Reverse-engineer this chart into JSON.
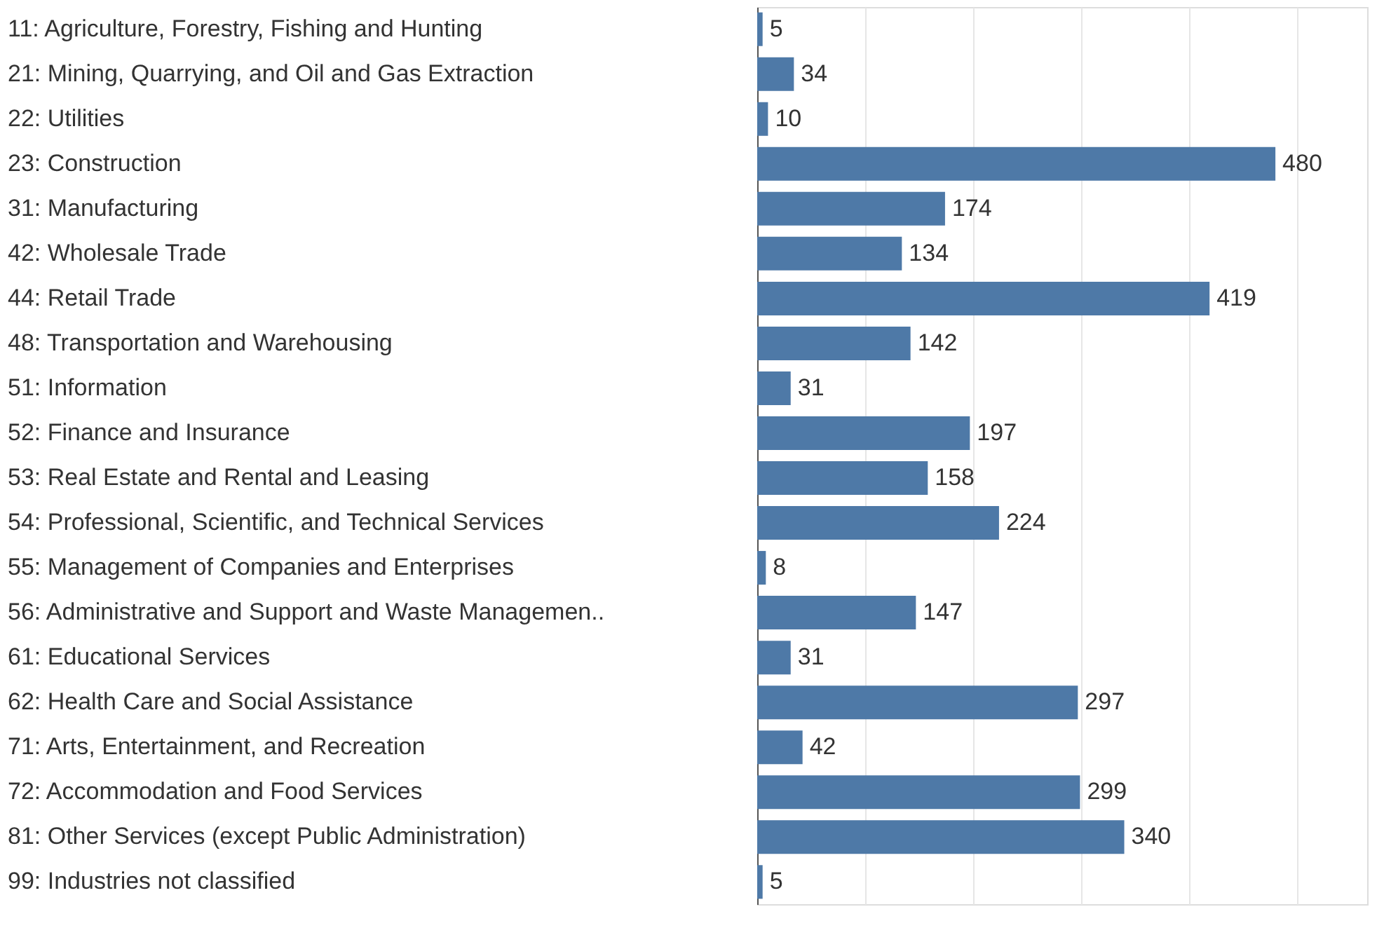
{
  "chart_data": {
    "type": "bar",
    "orientation": "horizontal",
    "data_labels": true,
    "grid": "x",
    "tick_labels": "y",
    "categories": [
      "11: Agriculture, Forestry, Fishing and Hunting",
      "21: Mining, Quarrying, and Oil and Gas Extraction",
      "22: Utilities",
      "23: Construction",
      "31: Manufacturing",
      "42: Wholesale Trade",
      "44: Retail Trade",
      "48: Transportation and Warehousing",
      "51: Information",
      "52: Finance and Insurance",
      "53: Real Estate and Rental and Leasing",
      "54: Professional, Scientific, and Technical Services",
      "55: Management of Companies and Enterprises",
      "56: Administrative and Support and Waste Managemen..",
      "61: Educational Services",
      "62: Health Care and Social Assistance",
      "71: Arts, Entertainment, and Recreation",
      "72: Accommodation and Food Services",
      "81: Other Services (except Public Administration)",
      "99: Industries not classified"
    ],
    "values": [
      5,
      34,
      10,
      480,
      174,
      134,
      419,
      142,
      31,
      197,
      158,
      224,
      8,
      147,
      31,
      297,
      42,
      299,
      340,
      5
    ],
    "color": "#4e79a7",
    "xlim": [
      0,
      565
    ],
    "xticks": [
      {
        "value": 0,
        "label": null
      },
      {
        "value": 100,
        "label": null
      },
      {
        "value": 200,
        "label": null
      },
      {
        "value": 300,
        "label": null
      },
      {
        "value": 400,
        "label": null
      },
      {
        "value": 500,
        "label": null
      }
    ]
  }
}
